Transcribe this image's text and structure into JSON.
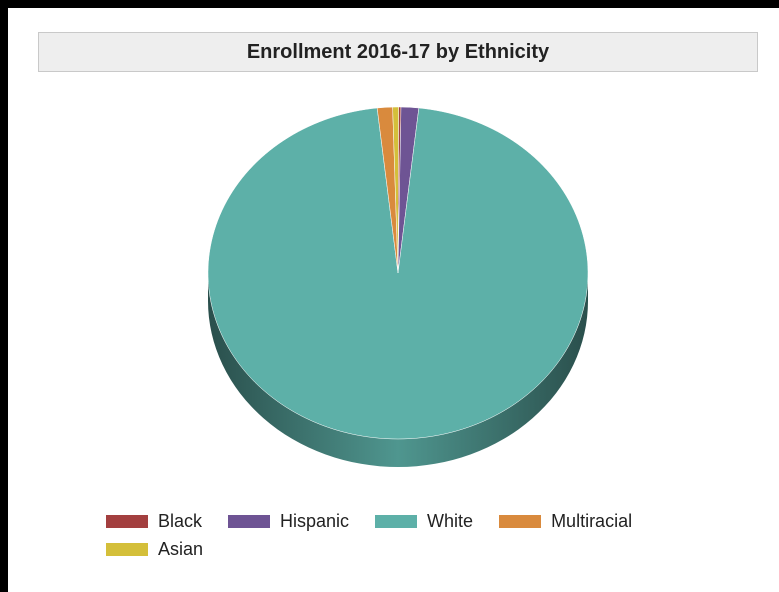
{
  "chart_data": {
    "type": "pie",
    "title": "Enrollment 2016-17 by Ethnicity",
    "slices": [
      {
        "label": "Black",
        "value": 0.2,
        "color": "#a33f3f"
      },
      {
        "label": "Hispanic",
        "value": 1.5,
        "color": "#6e5494"
      },
      {
        "label": "White",
        "value": 96.5,
        "color": "#5db0a8"
      },
      {
        "label": "Multiracial",
        "value": 1.3,
        "color": "#d98a3d"
      },
      {
        "label": "Asian",
        "value": 0.5,
        "color": "#d4bf3a"
      }
    ],
    "legend_position": "bottom"
  }
}
